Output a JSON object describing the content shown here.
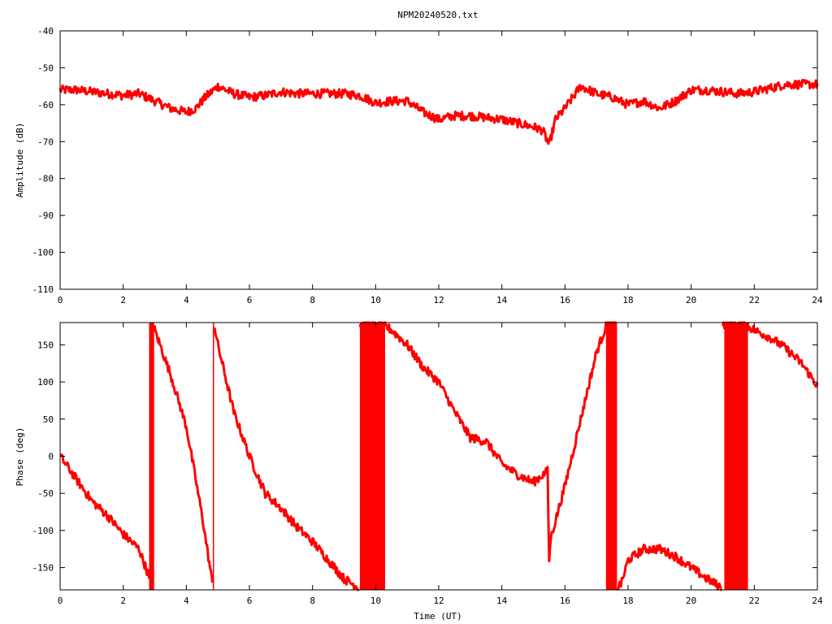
{
  "title": "NPM20240520.txt",
  "series_color": "#ff0000",
  "chart_data": [
    {
      "type": "line",
      "title": "NPM20240520.txt",
      "xlabel": "",
      "ylabel": "Amplitude (dB)",
      "xlim": [
        0,
        24
      ],
      "ylim": [
        -110,
        -40
      ],
      "xticks": [
        "0",
        "2",
        "4",
        "6",
        "8",
        "10",
        "12",
        "14",
        "16",
        "18",
        "20",
        "22",
        "24"
      ],
      "yticks": [
        "-40",
        "-50",
        "-60",
        "-70",
        "-80",
        "-90",
        "-100",
        "-110"
      ],
      "grid": false,
      "series": [
        {
          "x": [
            0,
            0.5,
            1,
            1.5,
            2,
            2.5,
            3,
            3.5,
            4,
            4.3,
            4.6,
            5,
            5.5,
            6,
            6.5,
            7,
            7.5,
            8,
            8.5,
            9,
            9.5,
            10,
            10.5,
            11,
            11.5,
            12,
            12.5,
            13,
            13.5,
            14,
            14.5,
            15,
            15.3,
            15.5,
            15.7,
            16,
            16.5,
            17,
            17.5,
            18,
            18.5,
            19,
            19.5,
            20,
            20.5,
            21,
            21.5,
            22,
            22.5,
            23,
            23.5,
            24
          ],
          "y": [
            -56,
            -56,
            -56.5,
            -57,
            -57.5,
            -57,
            -59,
            -61,
            -62,
            -61,
            -58,
            -55,
            -57,
            -58,
            -57.5,
            -56.5,
            -57,
            -57,
            -57,
            -57,
            -57.5,
            -59.5,
            -59,
            -59,
            -62,
            -64,
            -63,
            -63,
            -63.5,
            -64,
            -65,
            -66,
            -67,
            -71,
            -64,
            -61,
            -55,
            -57,
            -58,
            -60,
            -59,
            -61,
            -59,
            -56,
            -56,
            -56.5,
            -57,
            -56.5,
            -55.5,
            -54.5,
            -54.5,
            -54.5
          ],
          "noise": 1.2
        }
      ]
    },
    {
      "type": "line",
      "title": "",
      "xlabel": "Time (UT)",
      "ylabel": "Phase (deg)",
      "xlim": [
        0,
        24
      ],
      "ylim": [
        -180,
        180
      ],
      "xticks": [
        "0",
        "2",
        "4",
        "6",
        "8",
        "10",
        "12",
        "14",
        "16",
        "18",
        "20",
        "22",
        "24"
      ],
      "yticks": [
        "150",
        "100",
        "50",
        "0",
        "-50",
        "-100",
        "-150"
      ],
      "grid": false,
      "series": [
        {
          "x": [
            0,
            0.5,
            1,
            1.5,
            2,
            2.5,
            2.8,
            2.85,
            2.9,
            3,
            3.5,
            4,
            4.5,
            4.85,
            4.88,
            5,
            5.5,
            6,
            6.5,
            7,
            7.5,
            8,
            8.5,
            9,
            9.5,
            9.5,
            10.3,
            10.3,
            10.5,
            11,
            11.5,
            12,
            12.5,
            13,
            13.5,
            14,
            14.5,
            15,
            15.45,
            15.5,
            15.55,
            16,
            16.5,
            17,
            17.3,
            17.3,
            17.65,
            17.65,
            17.8,
            18,
            18.5,
            19,
            19.5,
            20,
            20.5,
            21,
            21,
            21.8,
            21.8,
            22,
            22.5,
            23,
            23.5,
            24
          ],
          "y": [
            0,
            -30,
            -60,
            -80,
            -105,
            -125,
            -160,
            -178,
            178,
            170,
            110,
            40,
            -80,
            -178,
            178,
            150,
            60,
            0,
            -50,
            -70,
            -95,
            -115,
            -140,
            -165,
            -178,
            178,
            178,
            175,
            170,
            150,
            120,
            100,
            60,
            25,
            20,
            -10,
            -25,
            -35,
            -20,
            -140,
            -110,
            -40,
            50,
            140,
            175,
            178,
            178,
            -178,
            -170,
            -140,
            -125,
            -125,
            -135,
            -150,
            -165,
            -178,
            178,
            178,
            175,
            170,
            160,
            145,
            125,
            95
          ],
          "noise": 6
        }
      ],
      "wraps": [
        {
          "x0": 2.82,
          "x1": 2.98
        },
        {
          "x0": 4.84,
          "x1": 4.86
        },
        {
          "x0": 9.5,
          "x1": 10.3
        },
        {
          "x0": 17.3,
          "x1": 17.65
        },
        {
          "x0": 21.05,
          "x1": 21.8
        }
      ]
    }
  ]
}
